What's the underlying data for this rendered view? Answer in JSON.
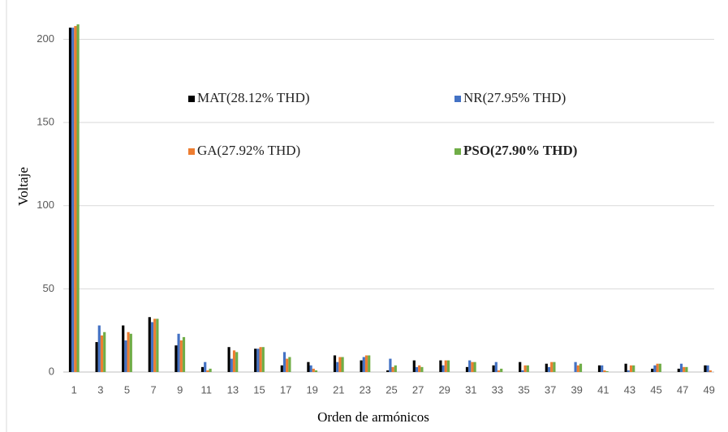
{
  "chart_data": {
    "type": "bar",
    "y_label": "Voltaje",
    "x_label": "Orden de armónicos",
    "categories": [
      "1",
      "3",
      "5",
      "7",
      "9",
      "11",
      "13",
      "15",
      "17",
      "19",
      "21",
      "23",
      "25",
      "27",
      "29",
      "31",
      "33",
      "35",
      "37",
      "39",
      "41",
      "43",
      "45",
      "47",
      "49"
    ],
    "series": [
      {
        "name": "MAT(28.12% THD)",
        "color": "#000000",
        "values": [
          207,
          18,
          28,
          33,
          16,
          3,
          15,
          14,
          4,
          6,
          10,
          7,
          1,
          7,
          7,
          3,
          4,
          6,
          5,
          0,
          4,
          5,
          2,
          2,
          4
        ]
      },
      {
        "name": "NR(27.95% THD)",
        "color": "#4472c4",
        "values": [
          207,
          28,
          19,
          30,
          23,
          6,
          8,
          14,
          12,
          4,
          6,
          9,
          8,
          3,
          4,
          7,
          6,
          1,
          3,
          6,
          4,
          1,
          4,
          5,
          4
        ]
      },
      {
        "name": "GA(27.92% THD)",
        "color": "#ed7d31",
        "values": [
          208,
          22,
          24,
          32,
          19,
          1,
          13,
          15,
          8,
          2,
          9,
          10,
          3,
          4,
          7,
          6,
          1,
          4,
          6,
          4,
          1,
          4,
          5,
          3,
          1
        ]
      },
      {
        "name": "PSO(27.90% THD)",
        "color": "#70ad47",
        "values": [
          209,
          24,
          23,
          32,
          21,
          2,
          12,
          15,
          9,
          1,
          9,
          10,
          4,
          3,
          7,
          6,
          2,
          4,
          6,
          5,
          0.5,
          4,
          5,
          3,
          0
        ]
      }
    ],
    "ylim": [
      0,
      210
    ],
    "yticks": [
      0,
      50,
      100,
      150,
      200
    ],
    "grid": true
  }
}
